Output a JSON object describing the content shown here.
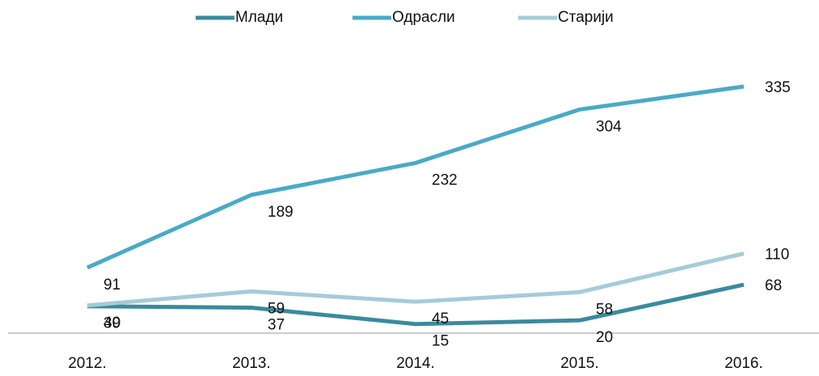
{
  "chart_data": {
    "type": "line",
    "categories": [
      "2012.",
      "2013.",
      "2014.",
      "2015.",
      "2016."
    ],
    "series": [
      {
        "name": "Млади",
        "color": "#3a8a9e",
        "values": [
          39,
          37,
          15,
          20,
          68
        ]
      },
      {
        "name": "Одрасли",
        "color": "#4aaac6",
        "values": [
          91,
          189,
          232,
          304,
          335
        ]
      },
      {
        "name": "Старији",
        "color": "#a6cbd8",
        "values": [
          40,
          59,
          45,
          58,
          110
        ]
      }
    ],
    "ylim": [
      0,
      400
    ]
  }
}
